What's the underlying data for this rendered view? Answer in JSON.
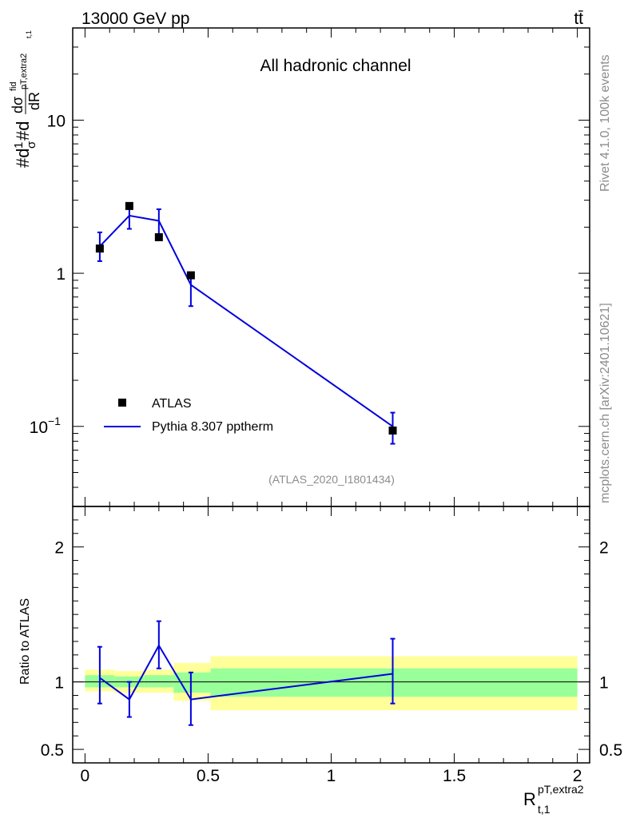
{
  "header": {
    "energy_label": "13000 GeV pp",
    "process_label": "tt̄"
  },
  "side_labels": {
    "rivet": "Rivet 4.1.0,  100k events",
    "mcplots": "mcplots.cern.ch [arXiv:2401.10621]"
  },
  "chart_data": [
    {
      "type": "scatter",
      "title": "All hadronic channel",
      "analysis_id": "(ATLAS_2020_I1801434)",
      "ylabel_text": "#d 1/σ #d dσ^fid_{t,1}/dR^{pT,extra2}",
      "ylabel_parts": [
        "#d",
        "1",
        "σ",
        "#d",
        "dσ",
        "fid",
        "pT,extra2",
        "t,1",
        "dR"
      ],
      "yscale": "log",
      "ylim": [
        0.03,
        40
      ],
      "xlim": [
        -0.05,
        2.05
      ],
      "y_ticks": [
        {
          "value": 10,
          "label": "10"
        },
        {
          "value": 1,
          "label": "1"
        },
        {
          "value": 0.1,
          "label": "10",
          "sup": "−1"
        }
      ],
      "legend": [
        "ATLAS",
        "Pythia 8.307 pptherm"
      ],
      "series": [
        {
          "name": "ATLAS",
          "style": "markers",
          "x": [
            0.06,
            0.18,
            0.3,
            0.43,
            1.25
          ],
          "y": [
            1.45,
            2.75,
            1.72,
            0.97,
            0.094
          ]
        },
        {
          "name": "Pythia 8.307 pptherm",
          "style": "line",
          "color": "#0000dd",
          "x": [
            0.06,
            0.18,
            0.3,
            0.43,
            1.25
          ],
          "y": [
            1.5,
            2.38,
            2.2,
            0.84,
            0.1
          ],
          "yerr_low": [
            1.2,
            1.95,
            1.75,
            0.61,
            0.077
          ],
          "yerr_high": [
            1.85,
            2.8,
            2.62,
            1.0,
            0.123
          ]
        }
      ]
    },
    {
      "type": "line",
      "ylabel": "Ratio to ATLAS",
      "xlabel_main": "R",
      "xlabel_sup": "pT,extra2",
      "xlabel_sub": "t,1",
      "ylim": [
        0.4,
        2.3
      ],
      "xlim": [
        -0.05,
        2.05
      ],
      "x_ticks": [
        {
          "value": 0,
          "label": "0"
        },
        {
          "value": 0.5,
          "label": "0.5"
        },
        {
          "value": 1,
          "label": "1"
        },
        {
          "value": 1.5,
          "label": "1.5"
        },
        {
          "value": 2,
          "label": "2"
        }
      ],
      "y_ticks": [
        {
          "value": 0.5,
          "label": "0.5"
        },
        {
          "value": 1,
          "label": "1"
        },
        {
          "value": 2,
          "label": "2"
        }
      ],
      "bands": {
        "edges": [
          0.0,
          0.12,
          0.24,
          0.36,
          0.51,
          2.0
        ],
        "yellow_low": [
          0.93,
          0.92,
          0.92,
          0.86,
          0.79
        ],
        "yellow_high": [
          1.09,
          1.08,
          1.09,
          1.14,
          1.19
        ],
        "green_low": [
          0.96,
          0.96,
          0.96,
          0.92,
          0.89
        ],
        "green_high": [
          1.05,
          1.04,
          1.05,
          1.07,
          1.1
        ],
        "yellow_color": "#ffff99",
        "green_color": "#99ff99"
      },
      "series": [
        {
          "name": "Pythia 8.307 pptherm / ATLAS",
          "color": "#0000dd",
          "x": [
            0.06,
            0.18,
            0.3,
            0.43,
            1.25
          ],
          "y": [
            1.03,
            0.87,
            1.27,
            0.87,
            1.06
          ],
          "yerr_low": [
            0.84,
            0.74,
            1.1,
            0.68,
            0.84
          ],
          "yerr_high": [
            1.26,
            1.0,
            1.45,
            1.07,
            1.32
          ]
        }
      ]
    }
  ]
}
